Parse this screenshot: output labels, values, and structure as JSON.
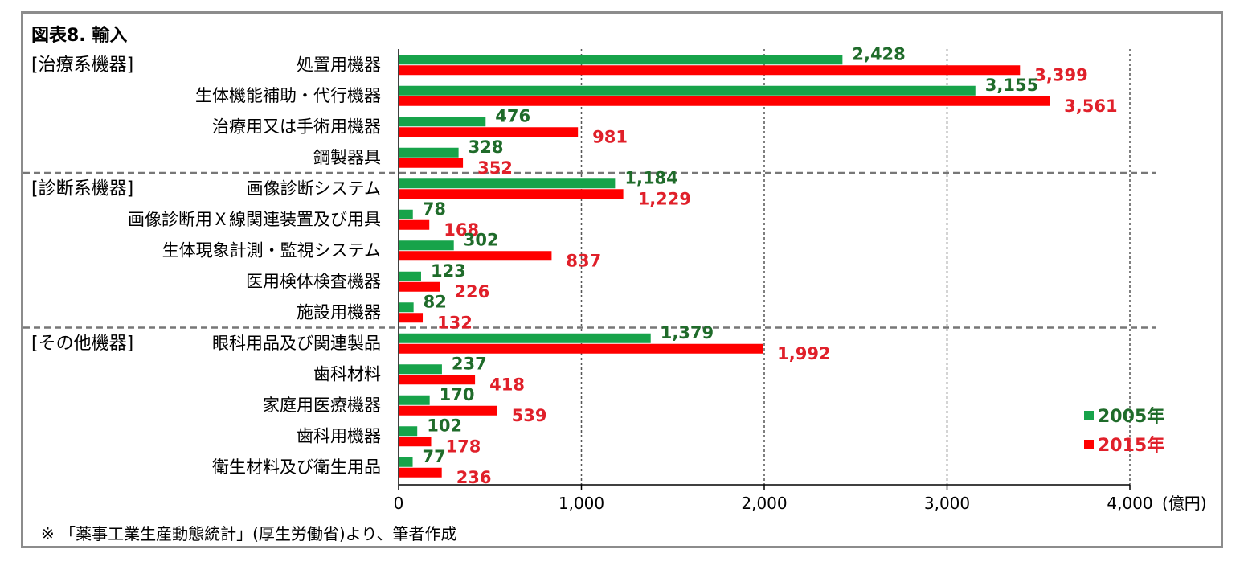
{
  "chart_data": {
    "type": "bar",
    "orientation": "horizontal",
    "title": "図表8. 輸入",
    "unit_label": "(億円)",
    "xlim": [
      0,
      4000
    ],
    "ticks": [
      {
        "value": 0,
        "label": "0"
      },
      {
        "value": 1000,
        "label": "1,000"
      },
      {
        "value": 2000,
        "label": "2,000"
      },
      {
        "value": 3000,
        "label": "3,000"
      },
      {
        "value": 4000,
        "label": "4,000"
      }
    ],
    "groups": [
      {
        "label": "[治療系機器]",
        "first_index": 0
      },
      {
        "label": "[診断系機器]",
        "first_index": 4
      },
      {
        "label": "[その他機器]",
        "first_index": 9
      }
    ],
    "categories": [
      "処置用機器",
      "生体機能補助・代行機器",
      "治療用又は手術用機器",
      "鋼製器具",
      "画像診断システム",
      "画像診断用Ｘ線関連装置及び用具",
      "生体現象計測・監視システム",
      "医用検体検査機器",
      "施設用機器",
      "眼科用品及び関連製品",
      "歯科材料",
      "家庭用医療機器",
      "歯科用機器",
      "衛生材料及び衛生用品"
    ],
    "series": [
      {
        "name": "2005年",
        "color": "#17a34a",
        "label_color": "#1f6b2a",
        "values": [
          2428,
          3155,
          476,
          328,
          1184,
          78,
          302,
          123,
          82,
          1379,
          237,
          170,
          102,
          77
        ],
        "labels": [
          "2,428",
          "3,155",
          "476",
          "328",
          "1,184",
          "78",
          "302",
          "123",
          "82",
          "1,379",
          "237",
          "170",
          "102",
          "77"
        ]
      },
      {
        "name": "2015年",
        "color": "#ff0000",
        "label_color": "#e0202a",
        "values": [
          3399,
          3561,
          981,
          352,
          1229,
          168,
          837,
          226,
          132,
          1992,
          418,
          539,
          178,
          236
        ],
        "labels": [
          "3,399",
          "3,561",
          "981",
          "352",
          "1,229",
          "168",
          "837",
          "226",
          "132",
          "1,992",
          "418",
          "539",
          "178",
          "236"
        ]
      }
    ],
    "legend_position": "bottom-right",
    "grid": true
  },
  "note": "※ 「薬事工業生産動態統計」(厚生労働省)より、筆者作成"
}
